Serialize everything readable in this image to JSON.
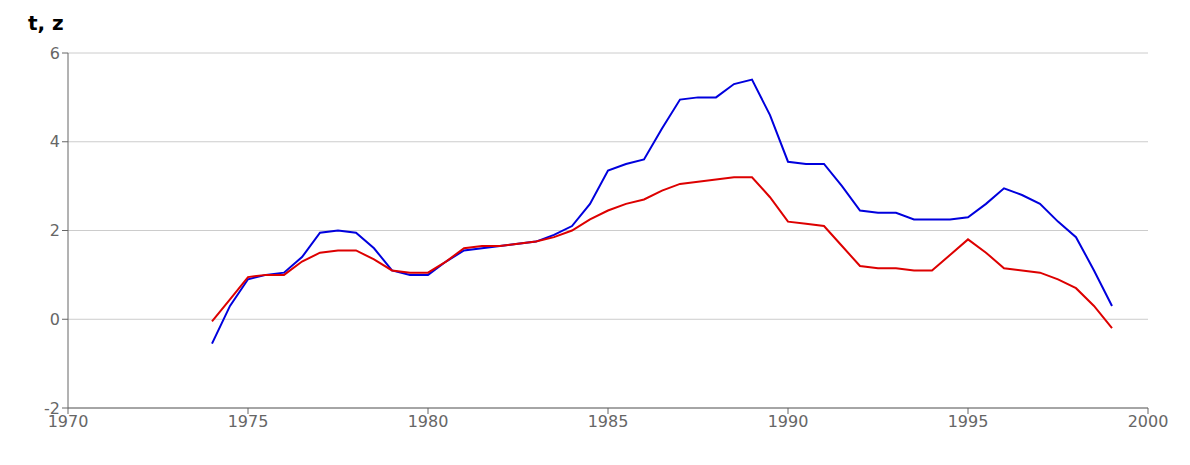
{
  "chart_data": {
    "type": "line",
    "title": "t, z",
    "x": [
      1974.0,
      1974.5,
      1975.0,
      1975.5,
      1976.0,
      1976.5,
      1977.0,
      1977.5,
      1978.0,
      1978.5,
      1979.0,
      1979.5,
      1980.0,
      1980.5,
      1981.0,
      1981.5,
      1982.0,
      1982.5,
      1983.0,
      1983.5,
      1984.0,
      1984.5,
      1985.0,
      1985.5,
      1986.0,
      1986.5,
      1987.0,
      1987.5,
      1988.0,
      1988.5,
      1989.0,
      1989.5,
      1990.0,
      1990.5,
      1991.0,
      1991.5,
      1992.0,
      1992.5,
      1993.0,
      1993.5,
      1994.0,
      1994.5,
      1995.0,
      1995.5,
      1996.0,
      1996.5,
      1997.0,
      1997.5,
      1998.0,
      1998.5,
      1999.0
    ],
    "series": [
      {
        "color": "#0000dd",
        "values": [
          -0.55,
          0.3,
          0.9,
          1.0,
          1.05,
          1.4,
          1.95,
          2.0,
          1.95,
          1.6,
          1.1,
          1.0,
          1.0,
          1.3,
          1.55,
          1.6,
          1.65,
          1.7,
          1.75,
          1.9,
          2.1,
          2.6,
          3.35,
          3.5,
          3.6,
          4.3,
          4.95,
          5.0,
          5.0,
          5.3,
          5.4,
          4.6,
          3.55,
          3.5,
          3.5,
          3.0,
          2.45,
          2.4,
          2.4,
          2.25,
          2.25,
          2.25,
          2.3,
          2.6,
          2.95,
          2.8,
          2.6,
          2.2,
          1.85,
          1.1,
          0.3
        ]
      },
      {
        "color": "#dd0000",
        "values": [
          -0.05,
          0.45,
          0.95,
          1.0,
          1.0,
          1.3,
          1.5,
          1.55,
          1.55,
          1.35,
          1.1,
          1.05,
          1.05,
          1.3,
          1.6,
          1.65,
          1.65,
          1.7,
          1.75,
          1.85,
          2.0,
          2.25,
          2.45,
          2.6,
          2.7,
          2.9,
          3.05,
          3.1,
          3.15,
          3.2,
          3.2,
          2.75,
          2.2,
          2.15,
          2.1,
          1.65,
          1.2,
          1.15,
          1.15,
          1.1,
          1.1,
          1.45,
          1.8,
          1.5,
          1.15,
          1.1,
          1.05,
          0.9,
          0.7,
          0.3,
          -0.2
        ]
      }
    ],
    "xlim": [
      1970,
      2000
    ],
    "ylim": [
      -2,
      6
    ],
    "xticks": [
      1970,
      1975,
      1980,
      1985,
      1990,
      1995,
      2000
    ],
    "yticks": [
      -2,
      0,
      2,
      4,
      6
    ],
    "grid": true
  }
}
